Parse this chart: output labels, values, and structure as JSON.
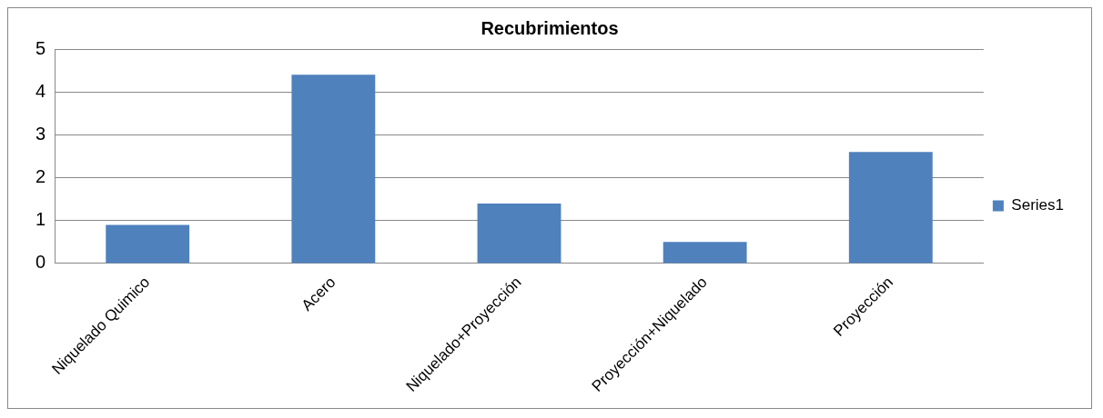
{
  "chart_data": {
    "type": "bar",
    "title": "Recubrimientos",
    "categories": [
      "Niquelado Quimico",
      "Acero",
      "Niquelado+Proyección",
      "Proyección+Niquelado",
      "Proyección"
    ],
    "series": [
      {
        "name": "Series1",
        "color": "#4f81bd",
        "values": [
          0.9,
          4.4,
          1.4,
          0.5,
          2.6
        ]
      }
    ],
    "ylim": [
      0,
      5
    ],
    "yticks": [
      0,
      1,
      2,
      3,
      4,
      5
    ],
    "grid": "y",
    "legend": "right"
  }
}
